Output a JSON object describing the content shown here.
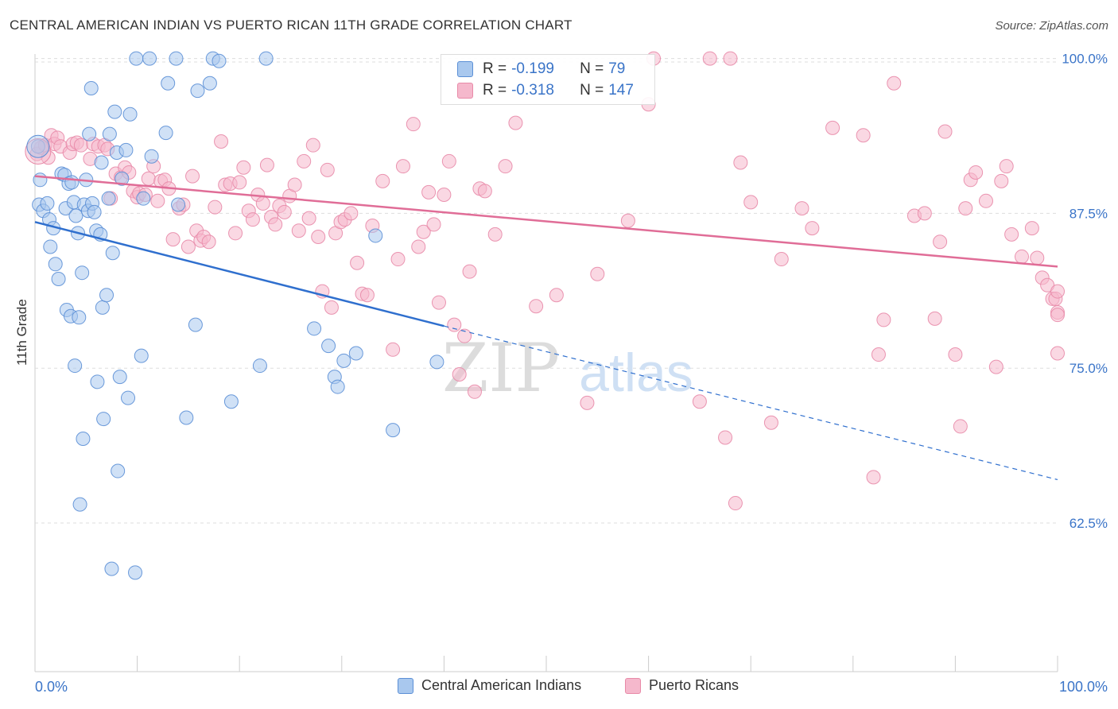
{
  "title": "CENTRAL AMERICAN INDIAN VS PUERTO RICAN 11TH GRADE CORRELATION CHART",
  "source": "Source: ZipAtlas.com",
  "watermark": {
    "zip": "ZIP",
    "atlas": "atlas"
  },
  "legend_top": {
    "rows": [
      {
        "r_label": "R = ",
        "r_value": "-0.199",
        "n_label": "N = ",
        "n_value": "79"
      },
      {
        "r_label": "R = ",
        "r_value": "-0.318",
        "n_label": "N = ",
        "n_value": "147"
      }
    ]
  },
  "colors": {
    "blue_fill": "#a9c8ee",
    "blue_stroke": "#5b8fd6",
    "blue_line": "#2f6fce",
    "pink_fill": "#f5b8cc",
    "pink_stroke": "#e88aa8",
    "pink_line": "#e06d97",
    "tick_label": "#3a74c8",
    "grid": "#dddddd"
  },
  "chart_data": {
    "type": "scatter",
    "title": "CENTRAL AMERICAN INDIAN VS PUERTO RICAN 11TH GRADE CORRELATION CHART",
    "xlabel": "",
    "ylabel": "11th Grade",
    "xlim": [
      0,
      100
    ],
    "ylim": [
      50.5,
      101
    ],
    "x_tick_labels": [
      "0.0%",
      "100.0%"
    ],
    "y_ticks": [
      62.5,
      75.0,
      87.5,
      100.0
    ],
    "y_tick_labels": [
      "62.5%",
      "75.0%",
      "87.5%",
      "100.0%"
    ],
    "grid": true,
    "legend_position": "bottom",
    "series": [
      {
        "name": "Central American Indians",
        "color": "#a9c8ee",
        "r": -0.199,
        "n": 79,
        "trend": {
          "solid": [
            [
              0,
              86.8
            ],
            [
              40,
              78.4
            ]
          ],
          "dashed": [
            [
              40,
              78.4
            ],
            [
              100,
              66.0
            ]
          ]
        },
        "points": [
          [
            0.3,
            92.9
          ],
          [
            0.5,
            90.2
          ],
          [
            0.4,
            88.2
          ],
          [
            0.8,
            87.7
          ],
          [
            1.2,
            88.3
          ],
          [
            1.4,
            87.0
          ],
          [
            1.8,
            86.3
          ],
          [
            1.5,
            84.8
          ],
          [
            2.0,
            83.4
          ],
          [
            2.3,
            82.2
          ],
          [
            2.6,
            90.7
          ],
          [
            2.9,
            90.6
          ],
          [
            3.0,
            87.9
          ],
          [
            3.1,
            79.7
          ],
          [
            3.3,
            89.9
          ],
          [
            3.5,
            79.2
          ],
          [
            3.6,
            90.0
          ],
          [
            3.8,
            88.4
          ],
          [
            3.9,
            75.2
          ],
          [
            4.0,
            87.3
          ],
          [
            4.2,
            85.9
          ],
          [
            4.3,
            79.1
          ],
          [
            4.4,
            64.0
          ],
          [
            4.6,
            82.7
          ],
          [
            4.7,
            69.3
          ],
          [
            4.8,
            88.2
          ],
          [
            5.0,
            90.2
          ],
          [
            5.2,
            87.7
          ],
          [
            5.3,
            93.9
          ],
          [
            5.5,
            97.6
          ],
          [
            5.6,
            88.3
          ],
          [
            5.8,
            87.6
          ],
          [
            6.0,
            86.1
          ],
          [
            6.1,
            73.9
          ],
          [
            6.4,
            85.8
          ],
          [
            6.5,
            91.6
          ],
          [
            6.6,
            79.9
          ],
          [
            6.7,
            70.9
          ],
          [
            7.0,
            80.9
          ],
          [
            7.2,
            88.7
          ],
          [
            7.3,
            93.9
          ],
          [
            7.5,
            58.8
          ],
          [
            7.6,
            84.3
          ],
          [
            7.8,
            95.7
          ],
          [
            8.0,
            92.4
          ],
          [
            8.1,
            66.7
          ],
          [
            8.3,
            74.3
          ],
          [
            8.5,
            90.3
          ],
          [
            8.9,
            92.6
          ],
          [
            9.1,
            72.6
          ],
          [
            9.3,
            95.5
          ],
          [
            9.8,
            58.5
          ],
          [
            9.9,
            100.0
          ],
          [
            10.4,
            76.0
          ],
          [
            10.6,
            88.7
          ],
          [
            11.2,
            100.0
          ],
          [
            11.4,
            92.1
          ],
          [
            12.8,
            94.0
          ],
          [
            13.0,
            98.0
          ],
          [
            13.8,
            100.0
          ],
          [
            14.0,
            88.2
          ],
          [
            14.8,
            71.0
          ],
          [
            15.7,
            78.5
          ],
          [
            15.9,
            97.4
          ],
          [
            17.1,
            98.0
          ],
          [
            17.4,
            100.0
          ],
          [
            18.0,
            99.8
          ],
          [
            19.2,
            72.3
          ],
          [
            22.0,
            75.2
          ],
          [
            22.6,
            100.0
          ],
          [
            27.3,
            78.2
          ],
          [
            28.7,
            76.8
          ],
          [
            29.3,
            74.3
          ],
          [
            29.6,
            73.5
          ],
          [
            30.2,
            75.6
          ],
          [
            31.4,
            76.2
          ],
          [
            33.3,
            85.7
          ],
          [
            35.0,
            70.0
          ],
          [
            39.3,
            75.5
          ]
        ]
      },
      {
        "name": "Puerto Ricans",
        "color": "#f5b8cc",
        "r": -0.318,
        "n": 147,
        "trend": {
          "solid": [
            [
              0,
              90.5
            ],
            [
              100,
              83.2
            ]
          ]
        },
        "points": [
          [
            0.2,
            92.3
          ],
          [
            0.6,
            92.8
          ],
          [
            1.0,
            93.0
          ],
          [
            1.3,
            92.0
          ],
          [
            1.6,
            93.8
          ],
          [
            1.9,
            93.1
          ],
          [
            2.2,
            93.6
          ],
          [
            2.5,
            92.9
          ],
          [
            3.4,
            92.4
          ],
          [
            3.7,
            93.1
          ],
          [
            4.1,
            93.2
          ],
          [
            4.5,
            93.0
          ],
          [
            5.4,
            91.9
          ],
          [
            5.7,
            93.1
          ],
          [
            6.2,
            92.9
          ],
          [
            6.8,
            93.0
          ],
          [
            7.1,
            92.7
          ],
          [
            7.4,
            88.7
          ],
          [
            7.9,
            90.7
          ],
          [
            8.4,
            90.4
          ],
          [
            8.8,
            91.2
          ],
          [
            9.2,
            90.8
          ],
          [
            9.6,
            89.3
          ],
          [
            10.0,
            88.8
          ],
          [
            10.2,
            89.1
          ],
          [
            10.8,
            89.0
          ],
          [
            11.1,
            90.3
          ],
          [
            11.6,
            91.3
          ],
          [
            12.0,
            88.5
          ],
          [
            12.3,
            90.1
          ],
          [
            12.7,
            90.2
          ],
          [
            13.1,
            89.5
          ],
          [
            13.5,
            85.4
          ],
          [
            14.1,
            87.9
          ],
          [
            14.5,
            88.2
          ],
          [
            15.0,
            84.8
          ],
          [
            15.4,
            90.5
          ],
          [
            15.8,
            86.1
          ],
          [
            16.2,
            85.3
          ],
          [
            16.5,
            85.6
          ],
          [
            17.0,
            85.2
          ],
          [
            17.6,
            88.0
          ],
          [
            18.2,
            93.3
          ],
          [
            18.6,
            89.8
          ],
          [
            19.1,
            89.9
          ],
          [
            19.6,
            85.9
          ],
          [
            20.0,
            90.0
          ],
          [
            20.4,
            91.2
          ],
          [
            20.9,
            87.7
          ],
          [
            21.3,
            87.0
          ],
          [
            21.8,
            89.0
          ],
          [
            22.3,
            88.3
          ],
          [
            22.7,
            91.4
          ],
          [
            23.1,
            87.2
          ],
          [
            23.5,
            86.6
          ],
          [
            23.9,
            88.1
          ],
          [
            24.4,
            87.6
          ],
          [
            24.9,
            88.9
          ],
          [
            25.4,
            89.8
          ],
          [
            25.8,
            86.1
          ],
          [
            26.3,
            91.7
          ],
          [
            26.8,
            87.1
          ],
          [
            27.2,
            93.0
          ],
          [
            27.7,
            85.6
          ],
          [
            28.1,
            81.2
          ],
          [
            28.6,
            91.0
          ],
          [
            29.0,
            79.9
          ],
          [
            29.4,
            85.9
          ],
          [
            29.9,
            86.8
          ],
          [
            30.3,
            87.0
          ],
          [
            30.9,
            87.5
          ],
          [
            31.5,
            83.5
          ],
          [
            32.0,
            81.0
          ],
          [
            32.5,
            80.9
          ],
          [
            33.0,
            86.5
          ],
          [
            34.0,
            90.1
          ],
          [
            35.0,
            76.5
          ],
          [
            35.5,
            83.8
          ],
          [
            36.0,
            91.3
          ],
          [
            37.0,
            94.7
          ],
          [
            37.5,
            84.8
          ],
          [
            38.0,
            86.0
          ],
          [
            38.5,
            89.2
          ],
          [
            39.0,
            86.6
          ],
          [
            39.5,
            80.3
          ],
          [
            40.0,
            89.0
          ],
          [
            40.5,
            91.7
          ],
          [
            41.0,
            78.5
          ],
          [
            41.5,
            74.5
          ],
          [
            42.0,
            77.6
          ],
          [
            42.5,
            82.8
          ],
          [
            43.0,
            73.1
          ],
          [
            43.5,
            89.5
          ],
          [
            44.0,
            89.3
          ],
          [
            45.0,
            85.8
          ],
          [
            46.0,
            91.3
          ],
          [
            47.0,
            94.8
          ],
          [
            49.0,
            80.0
          ],
          [
            51.0,
            80.9
          ],
          [
            54.0,
            72.2
          ],
          [
            55.0,
            82.6
          ],
          [
            58.0,
            86.9
          ],
          [
            60.0,
            96.3
          ],
          [
            60.5,
            100.0
          ],
          [
            65.0,
            72.3
          ],
          [
            66.0,
            100.0
          ],
          [
            67.5,
            69.4
          ],
          [
            68.0,
            100.0
          ],
          [
            68.5,
            64.1
          ],
          [
            69.0,
            91.6
          ],
          [
            70.0,
            88.4
          ],
          [
            72.0,
            70.6
          ],
          [
            73.0,
            83.8
          ],
          [
            75.0,
            87.9
          ],
          [
            76.0,
            86.3
          ],
          [
            78.0,
            94.4
          ],
          [
            81.0,
            93.8
          ],
          [
            82.0,
            66.2
          ],
          [
            82.5,
            76.1
          ],
          [
            83.0,
            78.9
          ],
          [
            84.0,
            98.0
          ],
          [
            86.0,
            87.3
          ],
          [
            87.0,
            87.5
          ],
          [
            88.0,
            79.0
          ],
          [
            88.5,
            85.2
          ],
          [
            89.0,
            94.1
          ],
          [
            90.0,
            76.1
          ],
          [
            90.5,
            70.3
          ],
          [
            91.0,
            87.9
          ],
          [
            91.5,
            90.2
          ],
          [
            92.0,
            90.8
          ],
          [
            93.0,
            88.5
          ],
          [
            94.0,
            75.1
          ],
          [
            94.5,
            90.1
          ],
          [
            95.0,
            91.3
          ],
          [
            95.5,
            85.8
          ],
          [
            96.5,
            84.0
          ],
          [
            97.5,
            86.3
          ],
          [
            98.0,
            83.9
          ],
          [
            98.5,
            82.3
          ],
          [
            99.0,
            81.7
          ],
          [
            99.5,
            80.6
          ],
          [
            99.8,
            80.6
          ],
          [
            100.0,
            81.2
          ],
          [
            100.0,
            79.5
          ],
          [
            100.0,
            79.3
          ],
          [
            100.0,
            76.2
          ]
        ]
      }
    ]
  },
  "legend_bottom": [
    "Central American Indians",
    "Puerto Ricans"
  ]
}
